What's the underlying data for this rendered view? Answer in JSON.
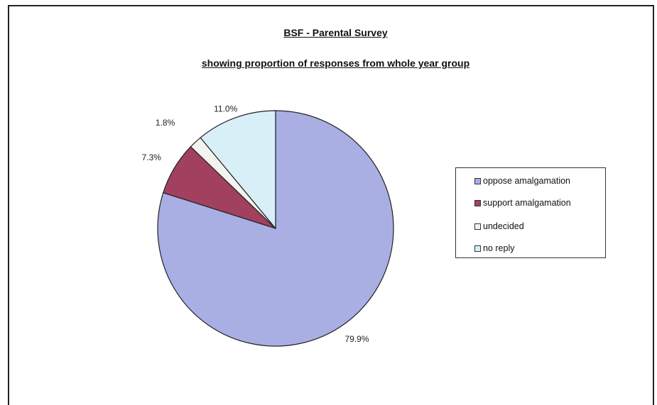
{
  "chart_data": {
    "type": "pie",
    "title": "BSF - Parental Survey",
    "subtitle": "showing proportion of responses from whole year group",
    "categories": [
      "oppose amalgamation",
      "support amalgamation",
      "undecided",
      "no reply"
    ],
    "values": [
      79.9,
      7.3,
      1.8,
      11.0
    ],
    "data_labels": [
      "79.9%",
      "7.3%",
      "1.8%",
      "11.0%"
    ],
    "colors": [
      "#a9afe3",
      "#a2405f",
      "#f4f4ef",
      "#d8eff8"
    ],
    "legend_position": "right"
  }
}
